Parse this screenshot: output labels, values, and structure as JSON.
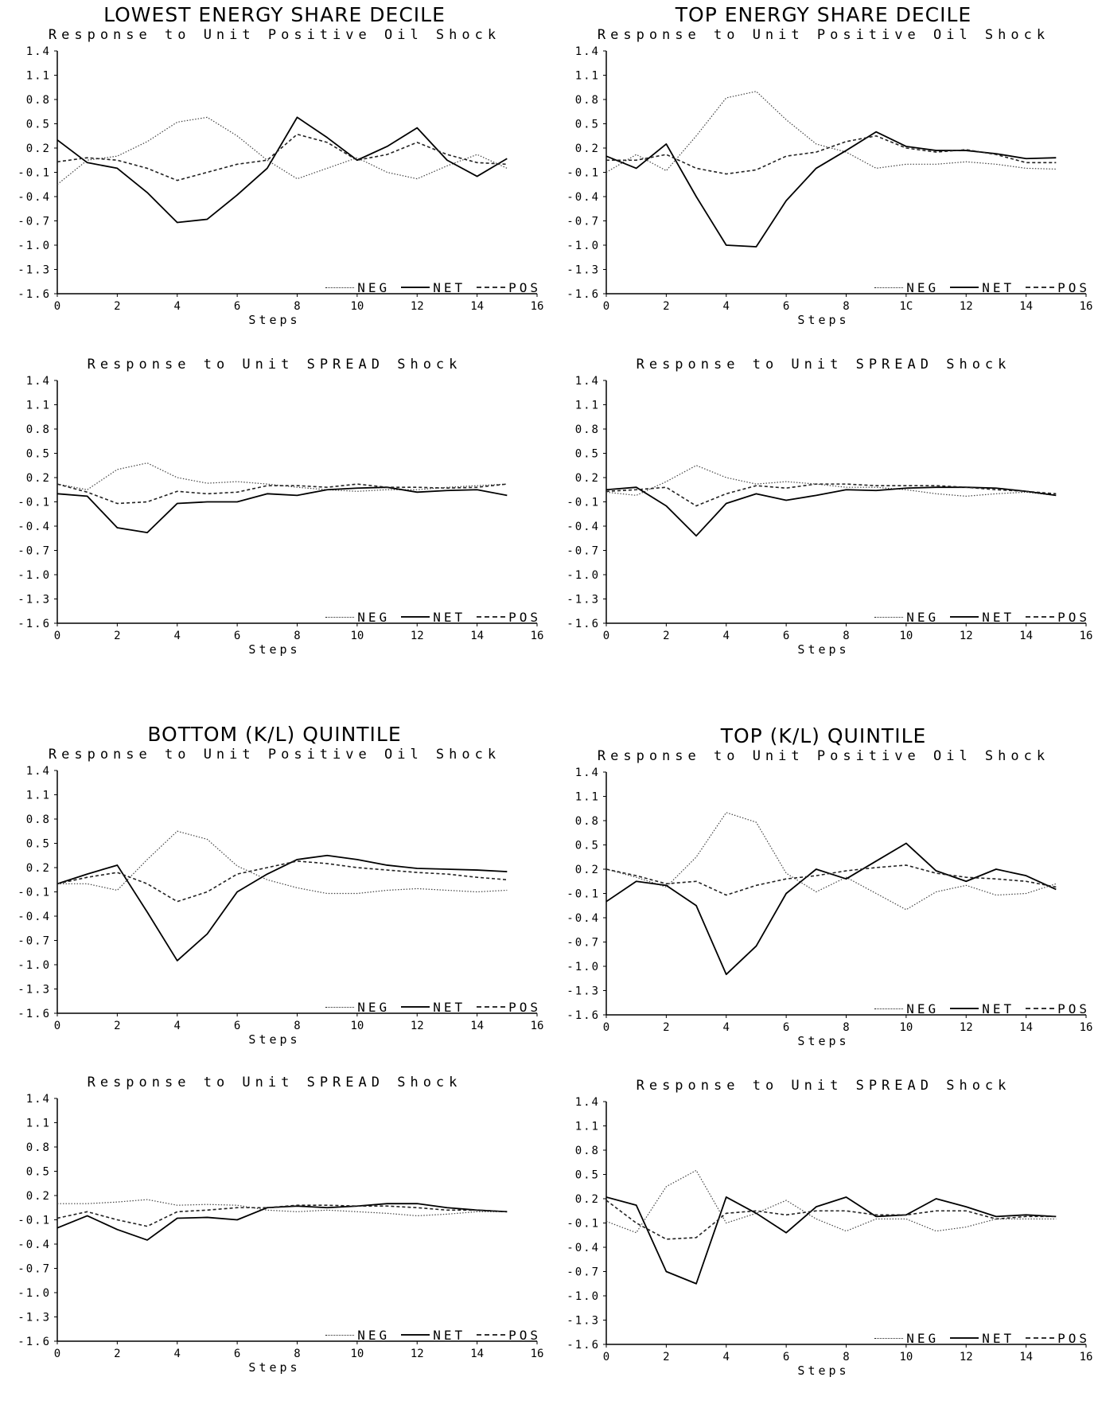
{
  "groups": {
    "lowest_energy": "LOWEST ENERGY SHARE DECILE",
    "top_energy": "TOP ENERGY SHARE DECILE",
    "bottom_kl": "BOTTOM (K/L) QUINTILE",
    "top_kl": "TOP (K/L) QUINTILE"
  },
  "legend": {
    "neg": "NEG",
    "net": "NET",
    "pos": "POS"
  },
  "colors": {
    "line": "#000000",
    "neg": "#444444",
    "net": "#000000",
    "pos": "#222222"
  },
  "chart_data": [
    {
      "type": "line",
      "title": "Response to Unit Positive Oil Shock",
      "xlabel": "Steps",
      "ylabel": "",
      "xlim": [
        0,
        16
      ],
      "ylim": [
        -1.6,
        1.4
      ],
      "xticks": [
        "0",
        "2",
        "4",
        "6",
        "8",
        "10",
        "12",
        "14",
        "16"
      ],
      "yticks": [
        "1.4",
        "1.1",
        "0.8",
        "0.5",
        "0.2",
        "-0.1",
        "-0.4",
        "-0.7",
        "-1.0",
        "-1.3",
        "-1.6"
      ],
      "x": [
        0,
        1,
        2,
        3,
        4,
        5,
        6,
        7,
        8,
        9,
        10,
        11,
        12,
        13,
        14,
        15
      ],
      "legend_position": "bottom-right",
      "series": [
        {
          "name": "NEG",
          "values": [
            -0.25,
            0.05,
            0.1,
            0.28,
            0.52,
            0.58,
            0.35,
            0.05,
            -0.18,
            -0.05,
            0.08,
            -0.1,
            -0.18,
            -0.02,
            0.12,
            -0.05
          ]
        },
        {
          "name": "NET",
          "values": [
            0.3,
            0.02,
            -0.05,
            -0.35,
            -0.72,
            -0.68,
            -0.38,
            -0.05,
            0.58,
            0.33,
            0.05,
            0.22,
            0.45,
            0.05,
            -0.15,
            0.07
          ]
        },
        {
          "name": "POS",
          "values": [
            0.03,
            0.08,
            0.05,
            -0.05,
            -0.2,
            -0.1,
            0.0,
            0.05,
            0.37,
            0.27,
            0.05,
            0.12,
            0.27,
            0.12,
            0.02,
            0.0
          ]
        }
      ]
    },
    {
      "type": "line",
      "title": "Response to Unit Positive Oil Shock",
      "xlabel": "Steps",
      "ylabel": "",
      "xlim": [
        0,
        16
      ],
      "ylim": [
        -1.6,
        1.4
      ],
      "xticks": [
        "0",
        "2",
        "4",
        "6",
        "8",
        "1C",
        "12",
        "14",
        "16"
      ],
      "yticks": [
        "1.4",
        "1.1",
        "0.8",
        "0.5",
        "0.2",
        "-0.1",
        "-0.4",
        "-0.7",
        "-1.0",
        "-1.3",
        "-1.6"
      ],
      "x": [
        0,
        1,
        2,
        3,
        4,
        5,
        6,
        7,
        8,
        9,
        10,
        11,
        12,
        13,
        14,
        15
      ],
      "legend_position": "bottom-right",
      "series": [
        {
          "name": "NEG",
          "values": [
            -0.1,
            0.12,
            -0.08,
            0.35,
            0.82,
            0.9,
            0.55,
            0.25,
            0.15,
            -0.05,
            0.0,
            0.0,
            0.03,
            0.0,
            -0.05,
            -0.06
          ]
        },
        {
          "name": "NET",
          "values": [
            0.1,
            -0.05,
            0.25,
            -0.4,
            -1.0,
            -1.02,
            -0.45,
            -0.05,
            0.17,
            0.4,
            0.22,
            0.17,
            0.17,
            0.13,
            0.07,
            0.08
          ]
        },
        {
          "name": "POS",
          "values": [
            0.05,
            0.05,
            0.12,
            -0.05,
            -0.12,
            -0.07,
            0.1,
            0.15,
            0.28,
            0.35,
            0.2,
            0.15,
            0.18,
            0.12,
            0.02,
            0.02
          ]
        }
      ]
    },
    {
      "type": "line",
      "title": "Response to Unit SPREAD Shock",
      "xlabel": "Steps",
      "ylabel": "",
      "xlim": [
        0,
        16
      ],
      "ylim": [
        -1.6,
        1.4
      ],
      "xticks": [
        "0",
        "2",
        "4",
        "6",
        "8",
        "10",
        "12",
        "14",
        "16"
      ],
      "yticks": [
        "1.4",
        "1.1",
        "0.8",
        "0.5",
        "0.2",
        "-0.1",
        "-0.4",
        "-0.7",
        "-1.0",
        "-1.3",
        "-1.6"
      ],
      "x": [
        0,
        1,
        2,
        3,
        4,
        5,
        6,
        7,
        8,
        9,
        10,
        11,
        12,
        13,
        14,
        15
      ],
      "legend_position": "bottom-right",
      "series": [
        {
          "name": "NEG",
          "values": [
            0.12,
            0.05,
            0.3,
            0.38,
            0.2,
            0.13,
            0.15,
            0.12,
            0.08,
            0.05,
            0.03,
            0.05,
            0.05,
            0.08,
            0.1,
            0.12
          ]
        },
        {
          "name": "NET",
          "values": [
            0.0,
            -0.03,
            -0.42,
            -0.48,
            -0.12,
            -0.1,
            -0.1,
            0.0,
            -0.02,
            0.05,
            0.07,
            0.08,
            0.02,
            0.04,
            0.05,
            -0.02
          ]
        },
        {
          "name": "POS",
          "values": [
            0.12,
            0.02,
            -0.12,
            -0.1,
            0.03,
            0.0,
            0.02,
            0.1,
            0.1,
            0.08,
            0.12,
            0.08,
            0.08,
            0.07,
            0.08,
            0.12
          ]
        }
      ]
    },
    {
      "type": "line",
      "title": "Response to Unit SPREAD Shock",
      "xlabel": "Steps",
      "ylabel": "",
      "xlim": [
        0,
        16
      ],
      "ylim": [
        -1.6,
        1.4
      ],
      "xticks": [
        "0",
        "2",
        "4",
        "6",
        "8",
        "10",
        "12",
        "14",
        "16"
      ],
      "yticks": [
        "1.4",
        "1.1",
        "0.8",
        "0.5",
        "0.2",
        "-0.1",
        "-0.4",
        "-0.7",
        "-1.0",
        "-1.3",
        "-1.6"
      ],
      "x": [
        0,
        1,
        2,
        3,
        4,
        5,
        6,
        7,
        8,
        9,
        10,
        11,
        12,
        13,
        14,
        15
      ],
      "legend_position": "bottom-right",
      "series": [
        {
          "name": "NEG",
          "values": [
            0.02,
            -0.02,
            0.15,
            0.35,
            0.2,
            0.12,
            0.15,
            0.12,
            0.08,
            0.08,
            0.05,
            0.0,
            -0.03,
            0.0,
            0.02,
            -0.02
          ]
        },
        {
          "name": "NET",
          "values": [
            0.05,
            0.08,
            -0.15,
            -0.52,
            -0.12,
            0.0,
            -0.08,
            -0.02,
            0.05,
            0.04,
            0.07,
            0.08,
            0.08,
            0.07,
            0.03,
            -0.02
          ]
        },
        {
          "name": "POS",
          "values": [
            0.03,
            0.05,
            0.08,
            -0.15,
            0.0,
            0.1,
            0.07,
            0.12,
            0.12,
            0.1,
            0.1,
            0.1,
            0.08,
            0.05,
            0.03,
            0.0
          ]
        }
      ]
    },
    {
      "type": "line",
      "title": "Response to Unit Positive Oil Shock",
      "xlabel": "Steps",
      "ylabel": "",
      "xlim": [
        0,
        16
      ],
      "ylim": [
        -1.6,
        1.4
      ],
      "xticks": [
        "0",
        "2",
        "4",
        "6",
        "8",
        "10",
        "12",
        "14",
        "16"
      ],
      "yticks": [
        "1.4",
        "1.1",
        "0.8",
        "0.5",
        "0.2",
        "-0.1",
        "-0.4",
        "-0.7",
        "-1.0",
        "-1.3",
        "-1.6"
      ],
      "x": [
        0,
        1,
        2,
        3,
        4,
        5,
        6,
        7,
        8,
        9,
        10,
        11,
        12,
        13,
        14,
        15
      ],
      "legend_position": "bottom-right",
      "series": [
        {
          "name": "NEG",
          "values": [
            0.0,
            0.0,
            -0.08,
            0.3,
            0.65,
            0.55,
            0.22,
            0.05,
            -0.05,
            -0.12,
            -0.12,
            -0.08,
            -0.06,
            -0.08,
            -0.1,
            -0.08
          ]
        },
        {
          "name": "NET",
          "values": [
            0.0,
            0.12,
            0.23,
            -0.35,
            -0.95,
            -0.62,
            -0.1,
            0.12,
            0.3,
            0.35,
            0.3,
            0.23,
            0.19,
            0.18,
            0.17,
            0.15
          ]
        },
        {
          "name": "POS",
          "values": [
            0.0,
            0.08,
            0.14,
            0.0,
            -0.22,
            -0.1,
            0.12,
            0.2,
            0.28,
            0.25,
            0.2,
            0.17,
            0.14,
            0.12,
            0.08,
            0.05
          ]
        }
      ]
    },
    {
      "type": "line",
      "title": "Response to Unit Positive Oil Shock",
      "xlabel": "Steps",
      "ylabel": "",
      "xlim": [
        0,
        16
      ],
      "ylim": [
        -1.6,
        1.4
      ],
      "xticks": [
        "0",
        "2",
        "4",
        "6",
        "8",
        "10",
        "12",
        "14",
        "16"
      ],
      "yticks": [
        "1.4",
        "1.1",
        "0.8",
        "0.5",
        "0.2",
        "-0.1",
        "-0.4",
        "-0.7",
        "-1.0",
        "-1.3",
        "-1.6"
      ],
      "x": [
        0,
        1,
        2,
        3,
        4,
        5,
        6,
        7,
        8,
        9,
        10,
        11,
        12,
        13,
        14,
        15
      ],
      "legend_position": "bottom-right",
      "series": [
        {
          "name": "NEG",
          "values": [
            0.2,
            0.1,
            -0.02,
            0.35,
            0.9,
            0.78,
            0.15,
            -0.08,
            0.1,
            -0.1,
            -0.3,
            -0.08,
            0.0,
            -0.12,
            -0.1,
            0.02
          ]
        },
        {
          "name": "NET",
          "values": [
            -0.2,
            0.05,
            0.0,
            -0.25,
            -1.1,
            -0.75,
            -0.1,
            0.2,
            0.08,
            0.3,
            0.52,
            0.18,
            0.05,
            0.2,
            0.12,
            -0.05
          ]
        },
        {
          "name": "POS",
          "values": [
            0.2,
            0.12,
            0.02,
            0.05,
            -0.12,
            0.0,
            0.08,
            0.12,
            0.18,
            0.22,
            0.25,
            0.15,
            0.1,
            0.08,
            0.05,
            -0.02
          ]
        }
      ]
    },
    {
      "type": "line",
      "title": "Response to Unit SPREAD Shock",
      "xlabel": "Steps",
      "ylabel": "",
      "xlim": [
        0,
        16
      ],
      "ylim": [
        -1.6,
        1.4
      ],
      "xticks": [
        "0",
        "2",
        "4",
        "6",
        "8",
        "10",
        "12",
        "14",
        "16"
      ],
      "yticks": [
        "1.4",
        "1.1",
        "0.8",
        "0.5",
        "0.2",
        "-0.1",
        "-0.4",
        "-0.7",
        "-1.0",
        "-1.3",
        "-1.6"
      ],
      "x": [
        0,
        1,
        2,
        3,
        4,
        5,
        6,
        7,
        8,
        9,
        10,
        11,
        12,
        13,
        14,
        15
      ],
      "legend_position": "bottom-right",
      "series": [
        {
          "name": "NEG",
          "values": [
            0.1,
            0.1,
            0.12,
            0.15,
            0.08,
            0.09,
            0.08,
            0.02,
            0.0,
            0.02,
            0.0,
            -0.02,
            -0.05,
            -0.03,
            0.0,
            0.0
          ]
        },
        {
          "name": "NET",
          "values": [
            -0.2,
            -0.05,
            -0.22,
            -0.35,
            -0.08,
            -0.07,
            -0.1,
            0.05,
            0.07,
            0.05,
            0.07,
            0.1,
            0.1,
            0.05,
            0.02,
            0.0
          ]
        },
        {
          "name": "POS",
          "values": [
            -0.08,
            0.0,
            -0.1,
            -0.18,
            0.0,
            0.02,
            0.05,
            0.05,
            0.08,
            0.08,
            0.07,
            0.07,
            0.05,
            0.02,
            0.02,
            0.0
          ]
        }
      ]
    },
    {
      "type": "line",
      "title": "Response to Unit SPREAD Shock",
      "xlabel": "Steps",
      "ylabel": "",
      "xlim": [
        0,
        16
      ],
      "ylim": [
        -1.6,
        1.4
      ],
      "xticks": [
        "0",
        "2",
        "4",
        "6",
        "8",
        "10",
        "12",
        "14",
        "16"
      ],
      "yticks": [
        "1.4",
        "1.1",
        "0.8",
        "0.5",
        "0.2",
        "-0.1",
        "-0.4",
        "-0.7",
        "-1.0",
        "-1.3",
        "-1.6"
      ],
      "x": [
        0,
        1,
        2,
        3,
        4,
        5,
        6,
        7,
        8,
        9,
        10,
        11,
        12,
        13,
        14,
        15
      ],
      "legend_position": "bottom-right",
      "series": [
        {
          "name": "NEG",
          "values": [
            -0.08,
            -0.22,
            0.35,
            0.55,
            -0.1,
            0.02,
            0.18,
            -0.05,
            -0.2,
            -0.05,
            -0.05,
            -0.2,
            -0.15,
            -0.05,
            -0.05,
            -0.05
          ]
        },
        {
          "name": "NET",
          "values": [
            0.22,
            0.12,
            -0.7,
            -0.85,
            0.22,
            0.02,
            -0.22,
            0.1,
            0.22,
            -0.02,
            0.0,
            0.2,
            0.1,
            -0.02,
            0.0,
            -0.02
          ]
        },
        {
          "name": "POS",
          "values": [
            0.18,
            -0.1,
            -0.3,
            -0.28,
            0.02,
            0.05,
            0.0,
            0.05,
            0.05,
            0.0,
            0.0,
            0.05,
            0.05,
            -0.05,
            -0.02,
            -0.02
          ]
        }
      ]
    }
  ]
}
